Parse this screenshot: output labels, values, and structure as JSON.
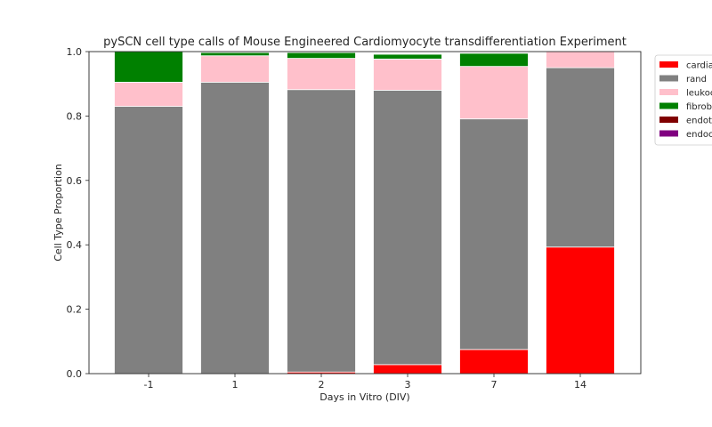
{
  "chart_data": {
    "type": "bar",
    "stacked": true,
    "title": "pySCN cell type calls of Mouse Engineered Cardiomyocyte transdifferentiation Experiment",
    "xlabel": "Days in Vitro (DIV)",
    "ylabel": "Cell Type Proportion",
    "ylim": [
      0,
      1.0
    ],
    "yticks": [
      "0.0",
      "0.2",
      "0.4",
      "0.6",
      "0.8",
      "1.0"
    ],
    "categories": [
      "-1",
      "1",
      "2",
      "3",
      "7",
      "14"
    ],
    "grid": false,
    "legend_position": "outside-top-right",
    "series": [
      {
        "name": "cardia",
        "color": "#ff0000",
        "values": [
          0.0,
          0.0,
          0.005,
          0.028,
          0.075,
          0.393
        ]
      },
      {
        "name": "rand",
        "color": "#808080",
        "values": [
          0.83,
          0.905,
          0.877,
          0.852,
          0.716,
          0.557
        ]
      },
      {
        "name": "leukoc",
        "color": "#ffc0cb",
        "values": [
          0.075,
          0.082,
          0.097,
          0.097,
          0.163,
          0.05
        ]
      },
      {
        "name": "fibrobl",
        "color": "#008000",
        "values": [
          0.095,
          0.01,
          0.018,
          0.015,
          0.041,
          0.0
        ]
      },
      {
        "name": "endoth",
        "color": "#800000",
        "values": [
          0.0,
          0.0,
          0.001,
          0.002,
          0.002,
          0.0
        ]
      },
      {
        "name": "endoc",
        "color": "#800080",
        "values": [
          0.0,
          0.0,
          0.0,
          0.001,
          0.0,
          0.0
        ]
      }
    ]
  }
}
